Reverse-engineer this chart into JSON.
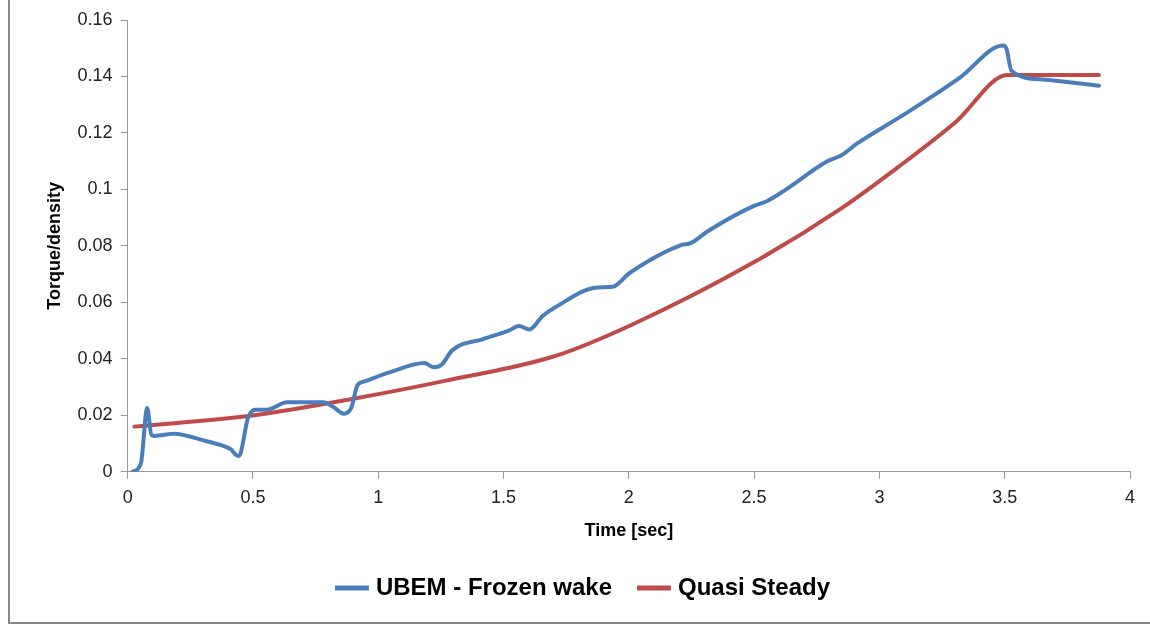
{
  "chart_data": {
    "type": "line",
    "xlabel": "Time [sec]",
    "ylabel": "Torque/density",
    "xlim": [
      0,
      4
    ],
    "xticks": [
      0,
      {
        "value": 0.5,
        "label": "0.5"
      },
      1,
      {
        "value": 1.5,
        "label": "1.5"
      },
      2,
      {
        "value": 2.5,
        "label": "2.5"
      },
      3,
      {
        "value": 3.5,
        "label": "3.5"
      },
      4
    ],
    "ylim": [
      0,
      0.16
    ],
    "yticks": [
      0,
      {
        "value": 0.02,
        "label": "0.02"
      },
      {
        "value": 0.04,
        "label": "0.04"
      },
      {
        "value": 0.06,
        "label": "0.06"
      },
      {
        "value": 0.08,
        "label": "0.08"
      },
      {
        "value": 0.1,
        "label": "0.1"
      },
      {
        "value": 0.12,
        "label": "0.12"
      },
      {
        "value": 0.14,
        "label": "0.14"
      },
      {
        "value": 0.16,
        "label": "0.16"
      }
    ],
    "grid": false,
    "legend": "bottom",
    "marker": "none",
    "line_style": "solid",
    "series": [
      {
        "name": "UBEM - Frozen wake",
        "color": "#4a7ebb",
        "x": [
          0.02,
          0.053,
          0.078,
          0.095,
          0.107,
          0.185,
          0.308,
          0.37,
          0.411,
          0.44,
          0.45,
          0.48,
          0.51,
          0.555,
          0.637,
          0.78,
          0.82,
          0.863,
          0.892,
          0.917,
          0.945,
          1.048,
          1.184,
          1.221,
          1.254,
          1.295,
          1.418,
          1.521,
          1.562,
          1.603,
          1.656,
          1.702,
          1.875,
          1.935,
          2.003,
          2.208,
          2.247,
          2.315,
          2.497,
          2.55,
          2.619,
          2.787,
          2.85,
          2.91,
          3.107,
          3.32,
          3.494,
          3.507,
          3.527,
          3.654,
          3.731,
          3.876
        ],
        "values": [
          0,
          0.003,
          0.0226,
          0.013,
          0.0127,
          0.0135,
          0.011,
          0.0095,
          0.008,
          0.0056,
          0.0064,
          0.019,
          0.022,
          0.022,
          0.0246,
          0.0246,
          0.023,
          0.0206,
          0.0226,
          0.0306,
          0.032,
          0.0353,
          0.0385,
          0.037,
          0.038,
          0.043,
          0.047,
          0.05,
          0.0516,
          0.0504,
          0.0552,
          0.058,
          0.0653,
          0.0655,
          0.0704,
          0.0803,
          0.081,
          0.0852,
          0.0941,
          0.0958,
          0.0995,
          0.1097,
          0.1122,
          0.1162,
          0.127,
          0.1395,
          0.151,
          0.1498,
          0.142,
          0.1389,
          0.1382,
          0.1367
        ]
      },
      {
        "name": "Quasi Steady",
        "color": "#be4b48",
        "x": [
          0.027,
          0.505,
          0.884,
          1.266,
          1.706,
          2.01,
          2.497,
          2.848,
          3.076,
          3.306,
          3.511,
          3.876
        ],
        "values": [
          0.016,
          0.02,
          0.0256,
          0.0322,
          0.041,
          0.052,
          0.0741,
          0.0933,
          0.108,
          0.124,
          0.1405,
          0.1405
        ]
      }
    ]
  }
}
